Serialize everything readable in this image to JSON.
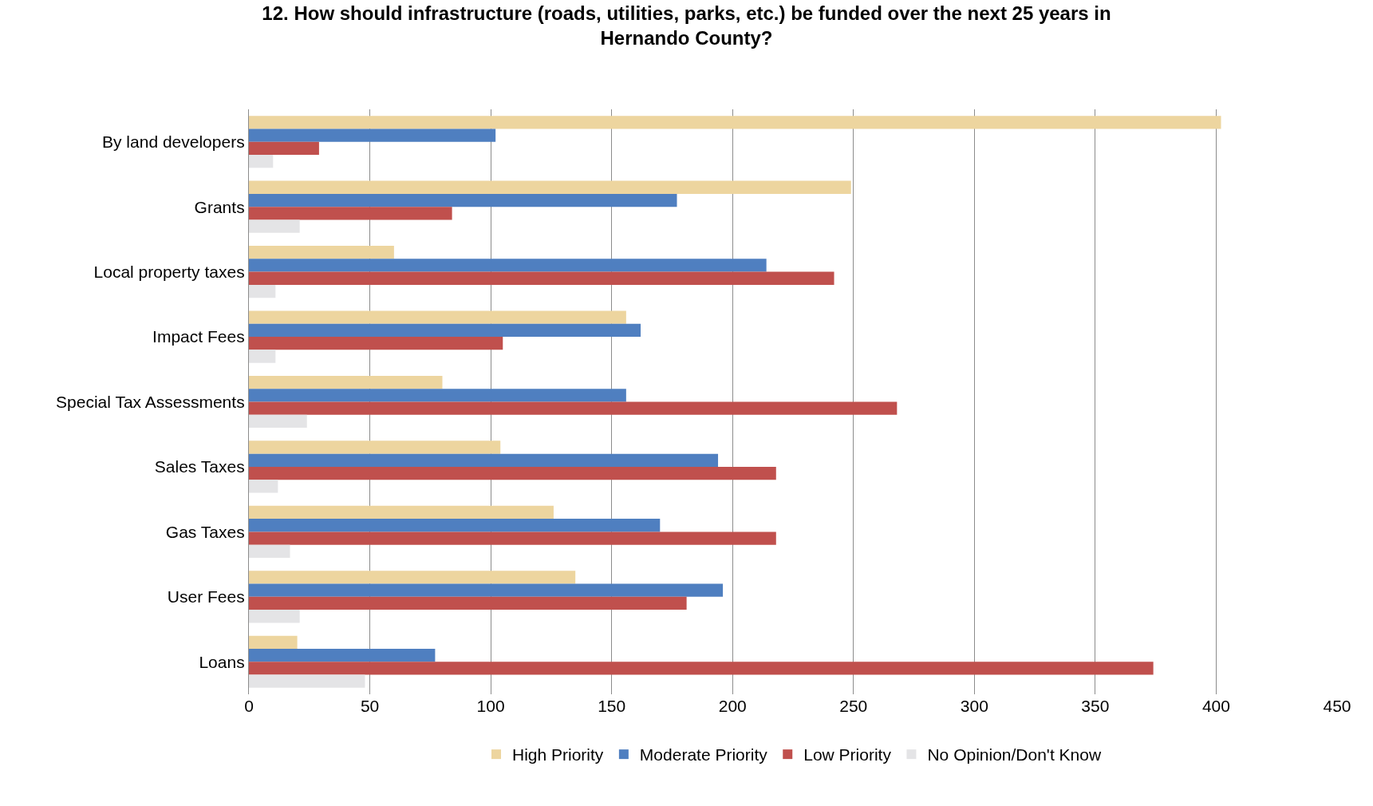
{
  "chart_data": {
    "type": "bar",
    "orientation": "horizontal",
    "title": "12. How should infrastructure (roads, utilities, parks, etc.) be funded over the next 25 years in Hernando County?",
    "categories": [
      "By land developers",
      "Grants",
      "Local property taxes",
      "Impact Fees",
      "Special Tax Assessments",
      "Sales Taxes",
      "Gas Taxes",
      "User Fees",
      "Loans"
    ],
    "series": [
      {
        "name": "High Priority",
        "color": "#edd59f",
        "values": [
          402,
          249,
          60,
          156,
          80,
          104,
          126,
          135,
          20
        ]
      },
      {
        "name": "Moderate Priority",
        "color": "#4f7fc0",
        "values": [
          102,
          177,
          214,
          162,
          156,
          194,
          170,
          196,
          77
        ]
      },
      {
        "name": "Low Priority",
        "color": "#c0504d",
        "values": [
          29,
          84,
          242,
          105,
          268,
          218,
          218,
          181,
          374
        ]
      },
      {
        "name": "No Opinion/Don't Know",
        "color": "#e4e4e6",
        "values": [
          10,
          21,
          11,
          11,
          24,
          12,
          17,
          21,
          48
        ]
      }
    ],
    "xlim": [
      0,
      450
    ],
    "xticks": [
      0,
      50,
      100,
      150,
      200,
      250,
      300,
      350,
      400,
      450
    ],
    "grid": "x",
    "legend": "bottom"
  }
}
